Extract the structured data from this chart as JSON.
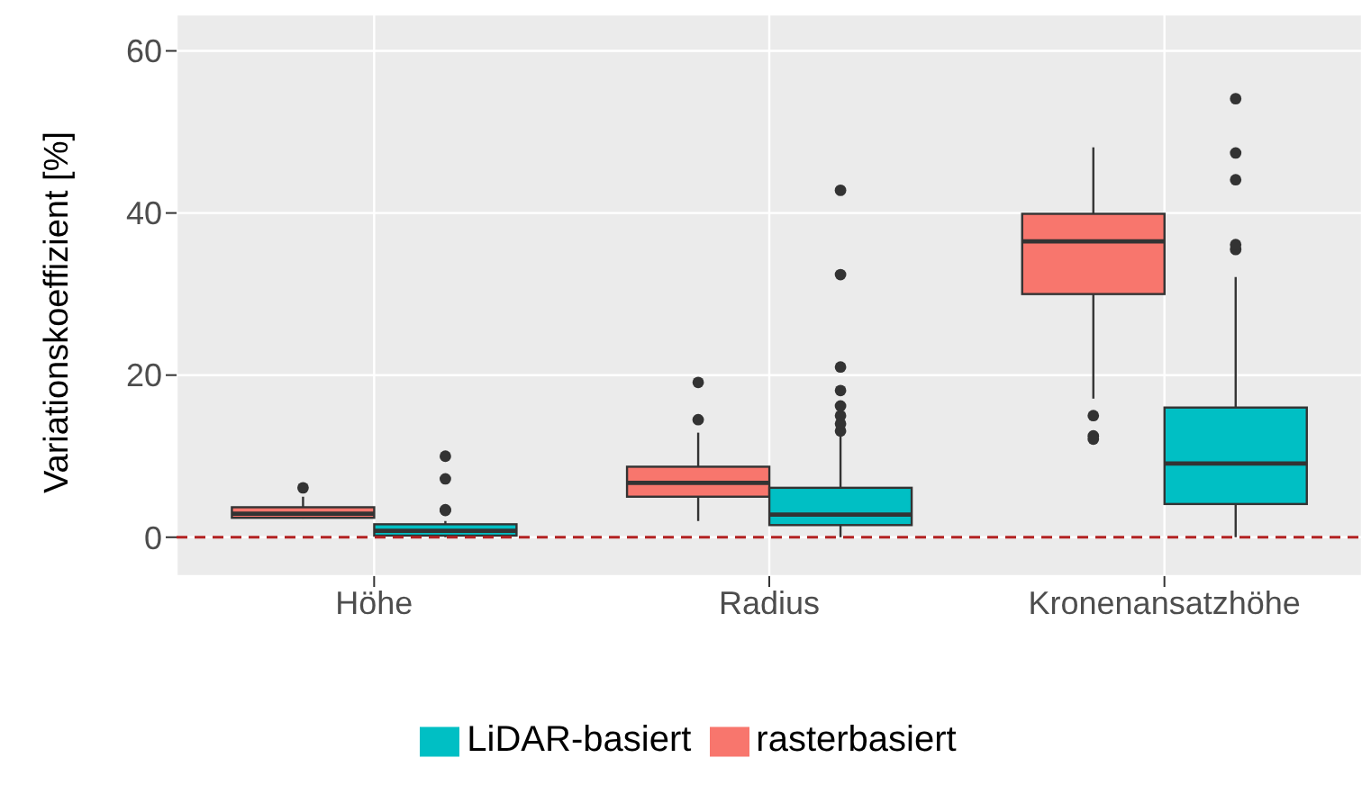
{
  "chart_data": {
    "type": "box",
    "categories": [
      "Höhe",
      "Radius",
      "Kronenansatzhöhe"
    ],
    "ylabel": "Variationskoeffizient [%]",
    "ylim": [
      -4.8,
      64.5
    ],
    "yticks": [
      0,
      20,
      40,
      60
    ],
    "grid": true,
    "legend": "bottom",
    "series": [
      {
        "name": "rasterbasiert",
        "color": "#f8766d",
        "boxes": [
          {
            "low": 2.3,
            "q1": 2.4,
            "median": 2.9,
            "q3": 3.7,
            "high": 5.0,
            "outliers": [
              6.1
            ]
          },
          {
            "low": 2.0,
            "q1": 5.0,
            "median": 6.7,
            "q3": 8.7,
            "high": 12.9,
            "outliers": [
              14.5,
              19.1
            ]
          },
          {
            "low": 17.1,
            "q1": 30.0,
            "median": 36.5,
            "q3": 39.9,
            "high": 48.1,
            "outliers": [
              15.0,
              12.5,
              12.1
            ]
          }
        ]
      },
      {
        "name": "LiDAR-basiert",
        "color": "#00bfc4",
        "boxes": [
          {
            "low": 0,
            "q1": 0.2,
            "median": 0.8,
            "q3": 1.6,
            "high": 2.0,
            "outliers": [
              3.3,
              3.4,
              7.2,
              10.0
            ]
          },
          {
            "low": 0,
            "q1": 1.5,
            "median": 2.8,
            "q3": 6.1,
            "high": 12.5,
            "outliers": [
              13.1,
              14.0,
              15.0,
              16.2,
              18.1,
              21.0,
              32.4,
              42.8
            ]
          },
          {
            "low": 0,
            "q1": 4.1,
            "median": 9.1,
            "q3": 16.0,
            "high": 32.1,
            "outliers": [
              35.5,
              36.1,
              44.1,
              47.4,
              54.1
            ]
          }
        ]
      }
    ],
    "ref_lines": [
      {
        "axis": "y",
        "value": 0,
        "color": "#b22222",
        "line_style": "dashed"
      }
    ]
  }
}
